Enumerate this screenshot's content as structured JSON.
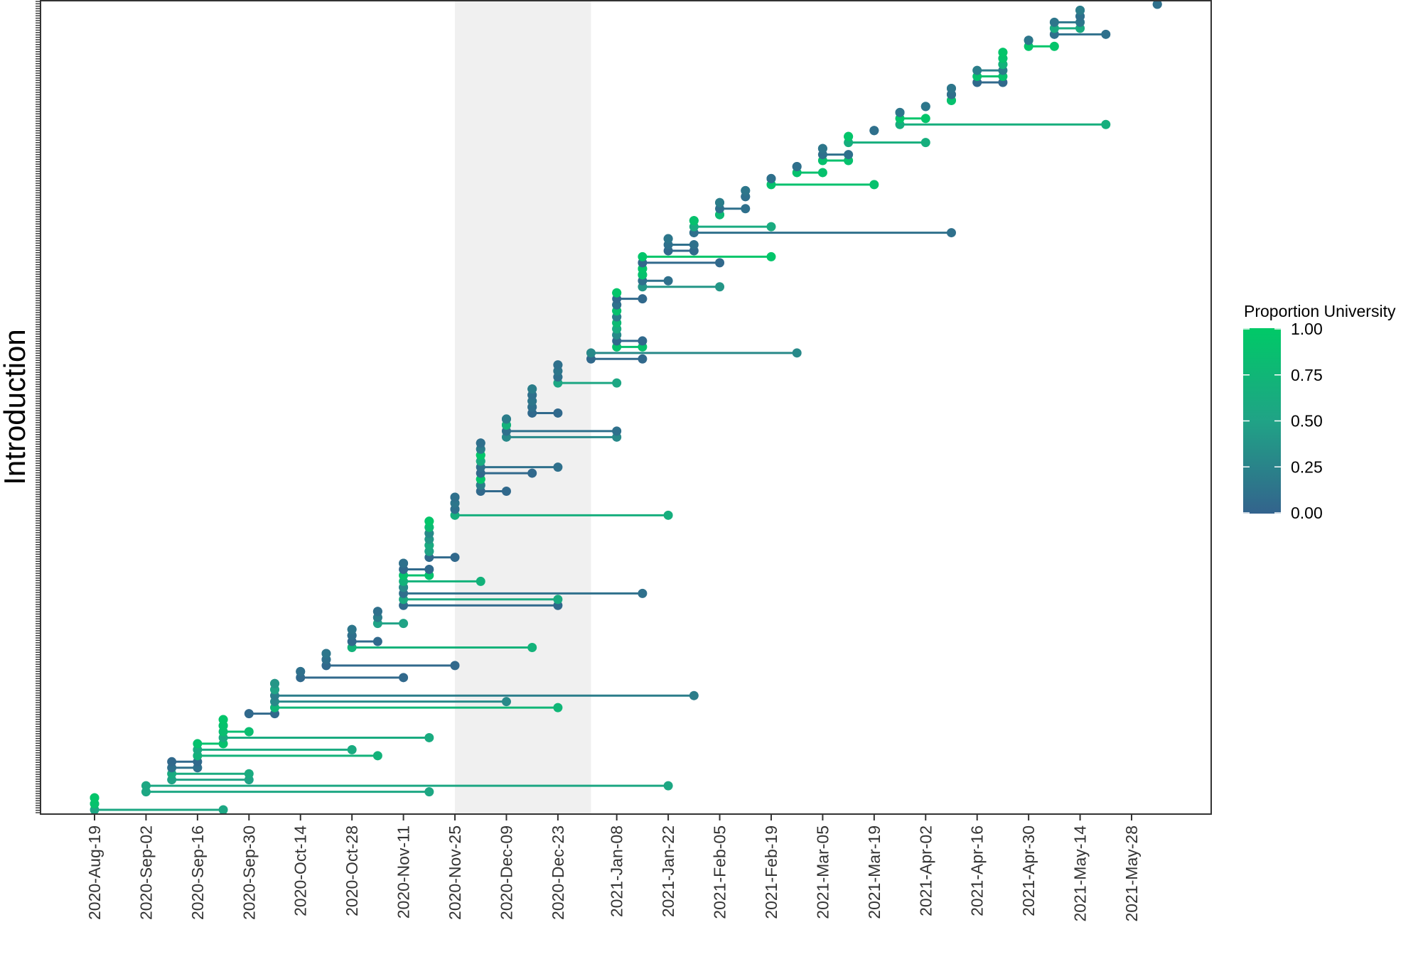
{
  "chart_data": {
    "type": "scatter",
    "title": "",
    "xlabel": "",
    "ylabel": "Introduction",
    "grid": false,
    "x_ticks": [
      "2020-Aug-19",
      "2020-Sep-02",
      "2020-Sep-16",
      "2020-Sep-30",
      "2020-Oct-14",
      "2020-Oct-28",
      "2020-Nov-11",
      "2020-Nov-25",
      "2020-Dec-09",
      "2020-Dec-23",
      "2021-Jan-08",
      "2021-Jan-22",
      "2021-Feb-05",
      "2021-Feb-19",
      "2021-Mar-05",
      "2021-Mar-19",
      "2021-Apr-02",
      "2021-Apr-16",
      "2021-Apr-30",
      "2021-May-14",
      "2021-May-28"
    ],
    "xlim": [
      "2020-Aug-05",
      "2021-Jun-20"
    ],
    "shaded_period": [
      "2020-Nov-25",
      "2021-Jan-01"
    ],
    "legend": {
      "title": "Proportion University",
      "position": "right",
      "ticks": [
        "1.00",
        "0.75",
        "0.50",
        "0.25",
        "0.00"
      ],
      "color_low": "#33638d",
      "color_high": "#00c967"
    },
    "series": [
      {
        "start": "2020-Aug-19",
        "end": "2020-Sep-23",
        "prop": 0.55
      },
      {
        "start": "2020-Aug-19",
        "end": "2020-Aug-19",
        "prop": 0.9
      },
      {
        "start": "2020-Aug-19",
        "end": "2020-Aug-19",
        "prop": 0.95
      },
      {
        "start": "2020-Sep-02",
        "end": "2020-Nov-18",
        "prop": 0.55
      },
      {
        "start": "2020-Sep-02",
        "end": "2021-Jan-22",
        "prop": 0.55
      },
      {
        "start": "2020-Sep-09",
        "end": "2020-Sep-30",
        "prop": 0.5
      },
      {
        "start": "2020-Sep-09",
        "end": "2020-Sep-30",
        "prop": 0.6
      },
      {
        "start": "2020-Sep-09",
        "end": "2020-Sep-16",
        "prop": 0.1
      },
      {
        "start": "2020-Sep-09",
        "end": "2020-Sep-16",
        "prop": 0.05
      },
      {
        "start": "2020-Sep-16",
        "end": "2020-Nov-04",
        "prop": 0.7
      },
      {
        "start": "2020-Sep-16",
        "end": "2020-Oct-28",
        "prop": 0.6
      },
      {
        "start": "2020-Sep-16",
        "end": "2020-Sep-23",
        "prop": 0.9
      },
      {
        "start": "2020-Sep-23",
        "end": "2020-Nov-18",
        "prop": 0.6
      },
      {
        "start": "2020-Sep-23",
        "end": "2020-Sep-30",
        "prop": 0.85
      },
      {
        "start": "2020-Sep-23",
        "end": "2020-Sep-23",
        "prop": 0.9
      },
      {
        "start": "2020-Sep-23",
        "end": "2020-Sep-23",
        "prop": 0.95
      },
      {
        "start": "2020-Sep-30",
        "end": "2020-Oct-07",
        "prop": 0.05
      },
      {
        "start": "2020-Oct-07",
        "end": "2020-Dec-23",
        "prop": 0.75
      },
      {
        "start": "2020-Oct-07",
        "end": "2020-Dec-09",
        "prop": 0.3
      },
      {
        "start": "2020-Oct-07",
        "end": "2021-Jan-29",
        "prop": 0.2
      },
      {
        "start": "2020-Oct-07",
        "end": "2020-Oct-07",
        "prop": 0.5
      },
      {
        "start": "2020-Oct-07",
        "end": "2020-Oct-07",
        "prop": 0.4
      },
      {
        "start": "2020-Oct-14",
        "end": "2020-Nov-11",
        "prop": 0.05
      },
      {
        "start": "2020-Oct-14",
        "end": "2020-Oct-14",
        "prop": 0.1
      },
      {
        "start": "2020-Oct-21",
        "end": "2020-Nov-25",
        "prop": 0.05
      },
      {
        "start": "2020-Oct-21",
        "end": "2020-Oct-21",
        "prop": 0.1
      },
      {
        "start": "2020-Oct-21",
        "end": "2020-Oct-21",
        "prop": 0.15
      },
      {
        "start": "2020-Oct-28",
        "end": "2020-Dec-16",
        "prop": 0.7
      },
      {
        "start": "2020-Oct-28",
        "end": "2020-Nov-04",
        "prop": 0.05
      },
      {
        "start": "2020-Oct-28",
        "end": "2020-Oct-28",
        "prop": 0.1
      },
      {
        "start": "2020-Oct-28",
        "end": "2020-Oct-28",
        "prop": 0.15
      },
      {
        "start": "2020-Nov-04",
        "end": "2020-Nov-11",
        "prop": 0.5
      },
      {
        "start": "2020-Nov-04",
        "end": "2020-Nov-04",
        "prop": 0.2
      },
      {
        "start": "2020-Nov-04",
        "end": "2020-Nov-04",
        "prop": 0.1
      },
      {
        "start": "2020-Nov-11",
        "end": "2020-Dec-23",
        "prop": 0.05
      },
      {
        "start": "2020-Nov-11",
        "end": "2020-Dec-23",
        "prop": 0.6
      },
      {
        "start": "2020-Nov-11",
        "end": "2021-Jan-15",
        "prop": 0.1
      },
      {
        "start": "2020-Nov-11",
        "end": "2020-Nov-11",
        "prop": 0.3
      },
      {
        "start": "2020-Nov-11",
        "end": "2020-Dec-02",
        "prop": 0.7
      },
      {
        "start": "2020-Nov-11",
        "end": "2020-Nov-18",
        "prop": 0.9
      },
      {
        "start": "2020-Nov-11",
        "end": "2020-Nov-18",
        "prop": 0.05
      },
      {
        "start": "2020-Nov-11",
        "end": "2020-Nov-11",
        "prop": 0.1
      },
      {
        "start": "2020-Nov-18",
        "end": "2020-Nov-25",
        "prop": 0.05
      },
      {
        "start": "2020-Nov-18",
        "end": "2020-Nov-18",
        "prop": 0.5
      },
      {
        "start": "2020-Nov-18",
        "end": "2020-Nov-18",
        "prop": 0.6
      },
      {
        "start": "2020-Nov-18",
        "end": "2020-Nov-18",
        "prop": 0.4
      },
      {
        "start": "2020-Nov-18",
        "end": "2020-Nov-18",
        "prop": 0.3
      },
      {
        "start": "2020-Nov-18",
        "end": "2020-Nov-18",
        "prop": 0.8
      },
      {
        "start": "2020-Nov-18",
        "end": "2020-Nov-18",
        "prop": 0.95
      },
      {
        "start": "2020-Nov-25",
        "end": "2021-Jan-22",
        "prop": 0.65
      },
      {
        "start": "2020-Nov-25",
        "end": "2020-Nov-25",
        "prop": 0.1
      },
      {
        "start": "2020-Nov-25",
        "end": "2020-Nov-25",
        "prop": 0.15
      },
      {
        "start": "2020-Nov-25",
        "end": "2020-Nov-25",
        "prop": 0.1
      },
      {
        "start": "2020-Dec-02",
        "end": "2020-Dec-09",
        "prop": 0.05
      },
      {
        "start": "2020-Dec-02",
        "end": "2020-Dec-02",
        "prop": 0.2
      },
      {
        "start": "2020-Dec-02",
        "end": "2020-Dec-02",
        "prop": 0.95
      },
      {
        "start": "2020-Dec-02",
        "end": "2020-Dec-16",
        "prop": 0.05
      },
      {
        "start": "2020-Dec-02",
        "end": "2020-Dec-23",
        "prop": 0.1
      },
      {
        "start": "2020-Dec-02",
        "end": "2020-Dec-02",
        "prop": 0.6
      },
      {
        "start": "2020-Dec-02",
        "end": "2020-Dec-02",
        "prop": 0.95
      },
      {
        "start": "2020-Dec-02",
        "end": "2020-Dec-02",
        "prop": 0.2
      },
      {
        "start": "2020-Dec-02",
        "end": "2020-Dec-02",
        "prop": 0.1
      },
      {
        "start": "2020-Dec-09",
        "end": "2021-Jan-08",
        "prop": 0.3
      },
      {
        "start": "2020-Dec-09",
        "end": "2021-Jan-08",
        "prop": 0.1
      },
      {
        "start": "2020-Dec-09",
        "end": "2020-Dec-09",
        "prop": 0.7
      },
      {
        "start": "2020-Dec-09",
        "end": "2020-Dec-09",
        "prop": 0.2
      },
      {
        "start": "2020-Dec-16",
        "end": "2020-Dec-23",
        "prop": 0.05
      },
      {
        "start": "2020-Dec-16",
        "end": "2020-Dec-16",
        "prop": 0.1
      },
      {
        "start": "2020-Dec-16",
        "end": "2020-Dec-16",
        "prop": 0.15
      },
      {
        "start": "2020-Dec-16",
        "end": "2020-Dec-16",
        "prop": 0.1
      },
      {
        "start": "2020-Dec-16",
        "end": "2020-Dec-16",
        "prop": 0.2
      },
      {
        "start": "2020-Dec-23",
        "end": "2021-Jan-08",
        "prop": 0.55
      },
      {
        "start": "2020-Dec-23",
        "end": "2020-Dec-23",
        "prop": 0.1
      },
      {
        "start": "2020-Dec-23",
        "end": "2020-Dec-23",
        "prop": 0.15
      },
      {
        "start": "2020-Dec-23",
        "end": "2020-Dec-23",
        "prop": 0.1
      },
      {
        "start": "2021-Jan-01",
        "end": "2021-Jan-15",
        "prop": 0.05
      },
      {
        "start": "2021-Jan-01",
        "end": "2021-Feb-26",
        "prop": 0.3
      },
      {
        "start": "2021-Jan-08",
        "end": "2021-Jan-15",
        "prop": 0.9
      },
      {
        "start": "2021-Jan-08",
        "end": "2021-Jan-15",
        "prop": 0.05
      },
      {
        "start": "2021-Jan-08",
        "end": "2021-Jan-08",
        "prop": 0.3
      },
      {
        "start": "2021-Jan-08",
        "end": "2021-Jan-08",
        "prop": 0.6
      },
      {
        "start": "2021-Jan-08",
        "end": "2021-Jan-08",
        "prop": 0.8
      },
      {
        "start": "2021-Jan-08",
        "end": "2021-Jan-08",
        "prop": 0.2
      },
      {
        "start": "2021-Jan-08",
        "end": "2021-Jan-08",
        "prop": 0.9
      },
      {
        "start": "2021-Jan-08",
        "end": "2021-Jan-08",
        "prop": 0.1
      },
      {
        "start": "2021-Jan-08",
        "end": "2021-Jan-15",
        "prop": 0.05
      },
      {
        "start": "2021-Jan-08",
        "end": "2021-Jan-08",
        "prop": 0.95
      },
      {
        "start": "2021-Jan-15",
        "end": "2021-Feb-05",
        "prop": 0.4
      },
      {
        "start": "2021-Jan-15",
        "end": "2021-Jan-22",
        "prop": 0.1
      },
      {
        "start": "2021-Jan-15",
        "end": "2021-Jan-15",
        "prop": 0.9
      },
      {
        "start": "2021-Jan-15",
        "end": "2021-Jan-15",
        "prop": 0.95
      },
      {
        "start": "2021-Jan-15",
        "end": "2021-Feb-05",
        "prop": 0.05
      },
      {
        "start": "2021-Jan-15",
        "end": "2021-Feb-19",
        "prop": 0.95
      },
      {
        "start": "2021-Jan-22",
        "end": "2021-Jan-29",
        "prop": 0.05
      },
      {
        "start": "2021-Jan-22",
        "end": "2021-Jan-29",
        "prop": 0.1
      },
      {
        "start": "2021-Jan-22",
        "end": "2021-Jan-22",
        "prop": 0.15
      },
      {
        "start": "2021-Jan-29",
        "end": "2021-Apr-09",
        "prop": 0.1
      },
      {
        "start": "2021-Jan-29",
        "end": "2021-Feb-19",
        "prop": 0.6
      },
      {
        "start": "2021-Jan-29",
        "end": "2021-Jan-29",
        "prop": 0.9
      },
      {
        "start": "2021-Feb-05",
        "end": "2021-Feb-05",
        "prop": 0.8
      },
      {
        "start": "2021-Feb-05",
        "end": "2021-Feb-12",
        "prop": 0.1
      },
      {
        "start": "2021-Feb-05",
        "end": "2021-Feb-05",
        "prop": 0.2
      },
      {
        "start": "2021-Feb-12",
        "end": "2021-Feb-12",
        "prop": 0.1
      },
      {
        "start": "2021-Feb-12",
        "end": "2021-Feb-12",
        "prop": 0.15
      },
      {
        "start": "2021-Feb-19",
        "end": "2021-Mar-19",
        "prop": 0.9
      },
      {
        "start": "2021-Feb-19",
        "end": "2021-Feb-19",
        "prop": 0.1
      },
      {
        "start": "2021-Feb-26",
        "end": "2021-Mar-05",
        "prop": 0.9
      },
      {
        "start": "2021-Feb-26",
        "end": "2021-Feb-26",
        "prop": 0.1
      },
      {
        "start": "2021-Mar-05",
        "end": "2021-Mar-12",
        "prop": 0.9
      },
      {
        "start": "2021-Mar-05",
        "end": "2021-Mar-12",
        "prop": 0.1
      },
      {
        "start": "2021-Mar-05",
        "end": "2021-Mar-05",
        "prop": 0.15
      },
      {
        "start": "2021-Mar-12",
        "end": "2021-Apr-02",
        "prop": 0.65
      },
      {
        "start": "2021-Mar-12",
        "end": "2021-Mar-12",
        "prop": 0.95
      },
      {
        "start": "2021-Mar-19",
        "end": "2021-Mar-19",
        "prop": 0.1
      },
      {
        "start": "2021-Mar-26",
        "end": "2021-May-21",
        "prop": 0.65
      },
      {
        "start": "2021-Mar-26",
        "end": "2021-Apr-02",
        "prop": 0.95
      },
      {
        "start": "2021-Mar-26",
        "end": "2021-Mar-26",
        "prop": 0.15
      },
      {
        "start": "2021-Apr-02",
        "end": "2021-Apr-02",
        "prop": 0.15
      },
      {
        "start": "2021-Apr-09",
        "end": "2021-Apr-09",
        "prop": 0.9
      },
      {
        "start": "2021-Apr-09",
        "end": "2021-Apr-09",
        "prop": 0.1
      },
      {
        "start": "2021-Apr-09",
        "end": "2021-Apr-09",
        "prop": 0.15
      },
      {
        "start": "2021-Apr-16",
        "end": "2021-Apr-23",
        "prop": 0.05
      },
      {
        "start": "2021-Apr-16",
        "end": "2021-Apr-23",
        "prop": 0.9
      },
      {
        "start": "2021-Apr-16",
        "end": "2021-Apr-23",
        "prop": 0.2
      },
      {
        "start": "2021-Apr-23",
        "end": "2021-Apr-23",
        "prop": 0.7
      },
      {
        "start": "2021-Apr-23",
        "end": "2021-Apr-23",
        "prop": 0.9
      },
      {
        "start": "2021-Apr-23",
        "end": "2021-Apr-23",
        "prop": 0.95
      },
      {
        "start": "2021-Apr-30",
        "end": "2021-May-07",
        "prop": 0.95
      },
      {
        "start": "2021-Apr-30",
        "end": "2021-Apr-30",
        "prop": 0.15
      },
      {
        "start": "2021-May-07",
        "end": "2021-May-21",
        "prop": 0.1
      },
      {
        "start": "2021-May-07",
        "end": "2021-May-14",
        "prop": 0.6
      },
      {
        "start": "2021-May-07",
        "end": "2021-May-14",
        "prop": 0.15
      },
      {
        "start": "2021-May-14",
        "end": "2021-May-14",
        "prop": 0.1
      },
      {
        "start": "2021-May-14",
        "end": "2021-May-14",
        "prop": 0.2
      },
      {
        "start": "2021-Jun-04",
        "end": "2021-Jun-04",
        "prop": 0.1
      }
    ]
  }
}
